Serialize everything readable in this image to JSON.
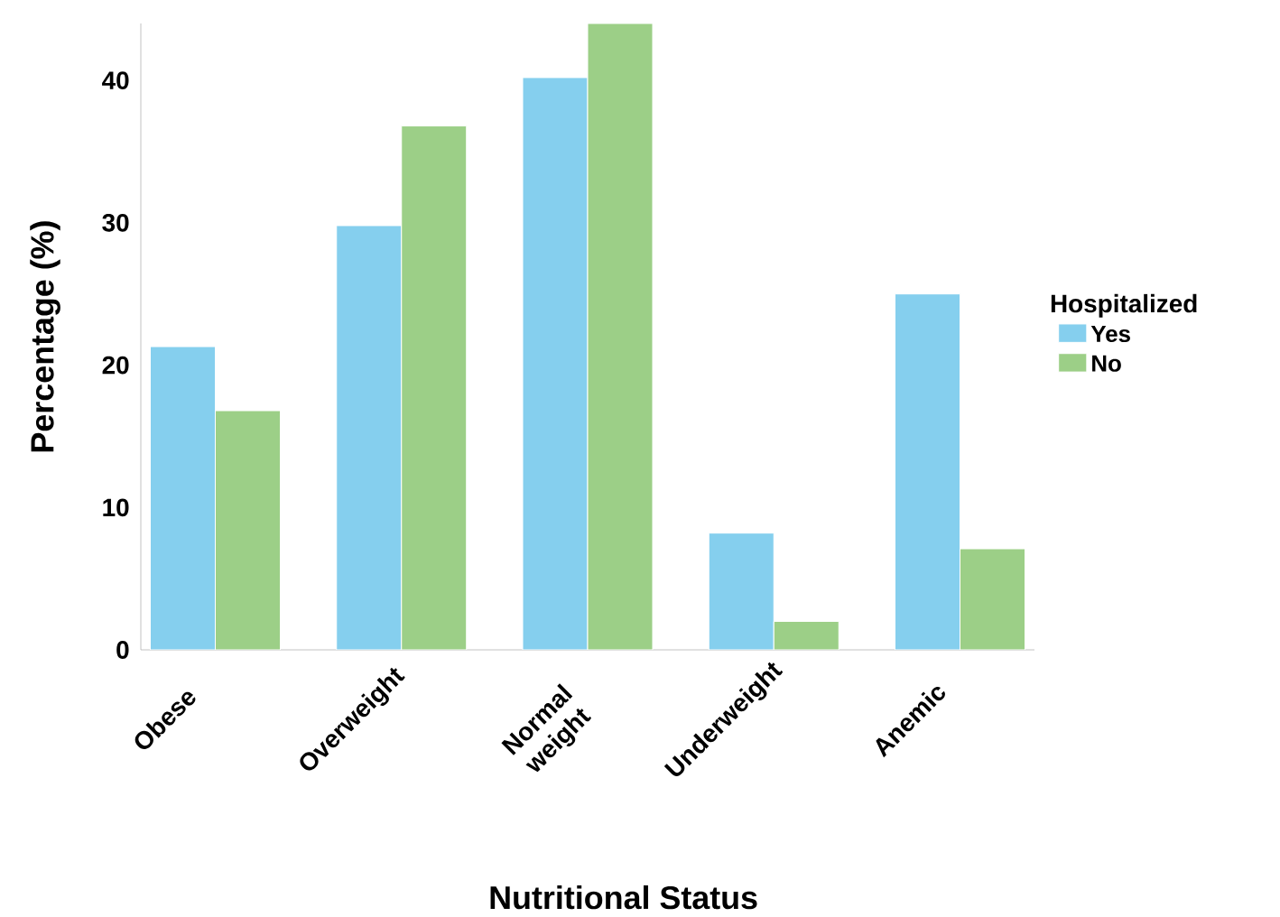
{
  "chart_data": {
    "type": "bar",
    "xlabel": "Nutritional Status",
    "ylabel": "Percentage (%)",
    "legend_title": "Hospitalized",
    "categories": [
      "Obese",
      "Overweight",
      "Normal weight",
      "Underweight",
      "Anemic"
    ],
    "series": [
      {
        "name": "Yes",
        "color": "#85cfee",
        "values": [
          21.3,
          29.8,
          40.2,
          8.2,
          25.0
        ]
      },
      {
        "name": "No",
        "color": "#9ccf87",
        "values": [
          16.8,
          36.8,
          44.0,
          2.0,
          7.1
        ]
      }
    ],
    "ylim": [
      0,
      44
    ],
    "yticks": [
      0,
      10,
      20,
      30,
      40
    ],
    "legend": "right"
  }
}
